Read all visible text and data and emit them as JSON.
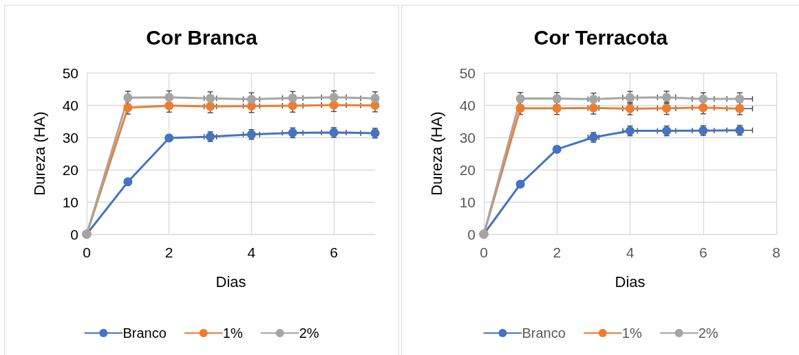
{
  "chart_data": [
    {
      "type": "line",
      "title": "Cor Branca",
      "xlabel": "Dias",
      "ylabel": "Dureza (HA)",
      "x": [
        0,
        1,
        2,
        3,
        4,
        5,
        6,
        7
      ],
      "series": [
        {
          "name": "Branco",
          "color": "#4472c4",
          "values": [
            0,
            16.2,
            29.8,
            30.2,
            30.9,
            31.4,
            31.5,
            31.3
          ],
          "errors": [
            null,
            null,
            null,
            1.5,
            1.5,
            1.5,
            1.5,
            1.5
          ],
          "xerrors": [
            null,
            null,
            null,
            0.15,
            0.2,
            0.25,
            0.3,
            [
              6.65,
              7
            ]
          ]
        },
        {
          "name": "1%",
          "color": "#ed7d31",
          "values": [
            0,
            39.2,
            39.8,
            39.6,
            39.7,
            39.8,
            40.0,
            39.9
          ],
          "errors": [
            null,
            2,
            2,
            2,
            2,
            2,
            2,
            2
          ],
          "xerrors": [
            null,
            null,
            null,
            0.15,
            0.2,
            0.25,
            0.3,
            [
              6.65,
              7
            ]
          ]
        },
        {
          "name": "2%",
          "color": "#a5a5a5",
          "values": [
            0,
            42.3,
            42.4,
            42.1,
            41.8,
            42.2,
            42.4,
            42.1
          ],
          "errors": [
            null,
            2,
            2,
            2,
            2,
            2,
            2,
            2
          ],
          "xerrors": [
            null,
            null,
            null,
            0.15,
            0.2,
            0.25,
            0.3,
            [
              6.65,
              7
            ]
          ]
        }
      ],
      "xlim": [
        0,
        7
      ],
      "xticks": [
        0,
        2,
        4,
        6
      ],
      "ylim": [
        0,
        50
      ],
      "yticks": [
        0,
        10,
        20,
        30,
        40,
        50
      ],
      "grid": true,
      "legend": "bottom",
      "marker": "circle",
      "line_style": "solid"
    },
    {
      "type": "line",
      "title": "Cor Terracota",
      "xlabel": "Dias",
      "ylabel": "Dureza (HA)",
      "x": [
        0,
        1,
        2,
        3,
        4,
        5,
        6,
        7
      ],
      "series": [
        {
          "name": "Branco",
          "color": "#4472c4",
          "values": [
            0,
            15.5,
            26.3,
            30.0,
            32.0,
            32.0,
            32.1,
            32.2
          ],
          "errors": [
            null,
            null,
            null,
            1.5,
            1.5,
            1.5,
            1.5,
            1.5
          ],
          "xerrors": [
            null,
            null,
            null,
            0.15,
            0.2,
            0.25,
            0.3,
            0.35
          ]
        },
        {
          "name": "1%",
          "color": "#ed7d31",
          "values": [
            0,
            39.0,
            39.0,
            39.1,
            38.9,
            39.0,
            39.2,
            38.9
          ],
          "errors": [
            null,
            1.9,
            1.9,
            1.9,
            1.9,
            1.9,
            1.9,
            1.9
          ],
          "xerrors": [
            null,
            null,
            null,
            0.15,
            0.2,
            0.25,
            0.3,
            0.35
          ]
        },
        {
          "name": "2%",
          "color": "#a5a5a5",
          "values": [
            0,
            42.0,
            42.0,
            41.8,
            42.3,
            42.4,
            41.9,
            41.9
          ],
          "errors": [
            null,
            1.9,
            1.9,
            1.9,
            1.9,
            1.9,
            1.9,
            1.9
          ],
          "xerrors": [
            null,
            null,
            null,
            0.15,
            0.2,
            0.25,
            0.3,
            0.35
          ]
        }
      ],
      "xlim": [
        0,
        8
      ],
      "xticks": [
        0,
        2,
        4,
        6,
        8
      ],
      "ylim": [
        0,
        50
      ],
      "yticks": [
        0,
        10,
        20,
        30,
        40,
        50
      ],
      "grid": true,
      "legend": "bottom",
      "marker": "circle",
      "line_style": "solid"
    }
  ]
}
